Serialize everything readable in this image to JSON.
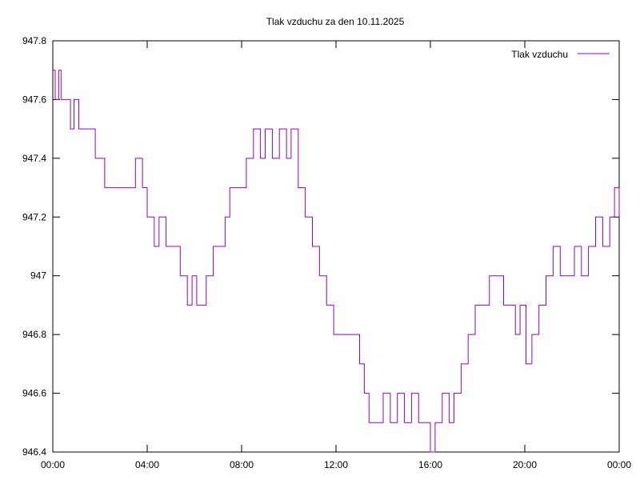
{
  "chart_data": {
    "type": "line",
    "title": "Tlak vzduchu za den 10.11.2025",
    "xlabel": "",
    "ylabel": "",
    "x_ticks": [
      "00:00",
      "04:00",
      "08:00",
      "12:00",
      "16:00",
      "20:00",
      "00:00"
    ],
    "y_ticks": [
      "946.4",
      "946.6",
      "946.8",
      "947",
      "947.2",
      "947.4",
      "947.6",
      "947.8"
    ],
    "xlim_hours": [
      0,
      24
    ],
    "ylim": [
      946.4,
      947.8
    ],
    "grid": false,
    "legend_position": "top-right",
    "series": [
      {
        "name": "Tlak vzduchu",
        "color": "#9400d3",
        "x_hours": [
          0.0,
          0.1,
          0.25,
          0.35,
          0.55,
          0.75,
          0.9,
          1.1,
          1.6,
          1.8,
          2.2,
          2.5,
          3.3,
          3.5,
          3.8,
          4.0,
          4.3,
          4.5,
          4.8,
          5.0,
          5.4,
          5.7,
          5.9,
          6.1,
          6.5,
          6.8,
          7.3,
          7.5,
          7.8,
          8.2,
          8.5,
          8.8,
          9.0,
          9.3,
          9.6,
          9.9,
          10.1,
          10.4,
          10.7,
          11.0,
          11.3,
          11.6,
          11.9,
          12.3,
          12.8,
          13.0,
          13.2,
          13.4,
          13.7,
          14.0,
          14.3,
          14.6,
          14.9,
          15.2,
          15.5,
          15.8,
          16.0,
          16.2,
          16.5,
          16.8,
          17.0,
          17.3,
          17.6,
          17.9,
          18.2,
          18.5,
          18.8,
          19.1,
          19.4,
          19.6,
          19.8,
          20.05,
          20.3,
          20.6,
          20.9,
          21.2,
          21.5,
          21.8,
          22.1,
          22.4,
          22.7,
          23.0,
          23.3,
          23.6,
          23.8,
          24.0
        ],
        "values": [
          947.7,
          947.6,
          947.7,
          947.6,
          947.6,
          947.5,
          947.6,
          947.5,
          947.5,
          947.4,
          947.3,
          947.3,
          947.3,
          947.4,
          947.3,
          947.2,
          947.1,
          947.2,
          947.1,
          947.1,
          947.0,
          946.9,
          947.0,
          946.9,
          947.0,
          947.1,
          947.2,
          947.3,
          947.3,
          947.4,
          947.5,
          947.4,
          947.5,
          947.4,
          947.5,
          947.4,
          947.5,
          947.3,
          947.2,
          947.1,
          947.0,
          946.9,
          946.8,
          946.8,
          946.8,
          946.7,
          946.6,
          946.5,
          946.5,
          946.6,
          946.5,
          946.6,
          946.5,
          946.6,
          946.5,
          946.5,
          946.4,
          946.5,
          946.6,
          946.5,
          946.6,
          946.7,
          946.8,
          946.9,
          946.9,
          947.0,
          947.0,
          946.9,
          946.9,
          946.8,
          946.9,
          946.7,
          946.8,
          946.9,
          947.0,
          947.1,
          947.0,
          947.0,
          947.1,
          947.0,
          947.1,
          947.2,
          947.1,
          947.2,
          947.3,
          947.2
        ]
      }
    ]
  }
}
